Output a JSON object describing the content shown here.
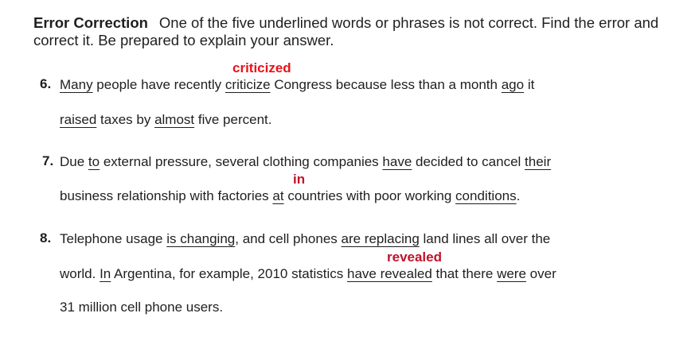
{
  "instructions": {
    "title": "Error Correction",
    "text": "One of the five underlined words or phrases is not correct. Find the error and correct it. Be prepared to explain your answer."
  },
  "items": [
    {
      "number": "6.",
      "correction": "criticized",
      "line1": [
        {
          "t": "Many",
          "u": true
        },
        {
          "t": " people have recently ",
          "u": false
        },
        {
          "t": "criticize",
          "u": true
        },
        {
          "t": " Congress because less than a month ",
          "u": false
        },
        {
          "t": "ago",
          "u": true
        },
        {
          "t": " it",
          "u": false
        }
      ],
      "line2": [
        {
          "t": "raised",
          "u": true
        },
        {
          "t": " taxes by ",
          "u": false
        },
        {
          "t": "almost",
          "u": true
        },
        {
          "t": " five percent.",
          "u": false
        }
      ]
    },
    {
      "number": "7.",
      "correction": "in",
      "line1": [
        {
          "t": "Due ",
          "u": false
        },
        {
          "t": "to",
          "u": true
        },
        {
          "t": " external pressure, several clothing companies ",
          "u": false
        },
        {
          "t": "have",
          "u": true
        },
        {
          "t": " decided to cancel ",
          "u": false
        },
        {
          "t": "their",
          "u": true
        }
      ],
      "line2": [
        {
          "t": "business relationship with factories ",
          "u": false
        },
        {
          "t": "at",
          "u": true
        },
        {
          "t": " countries with poor working ",
          "u": false
        },
        {
          "t": "conditions",
          "u": true
        },
        {
          "t": ".",
          "u": false
        }
      ]
    },
    {
      "number": "8.",
      "correction": "revealed",
      "line1": [
        {
          "t": "Telephone usage ",
          "u": false
        },
        {
          "t": "is changing",
          "u": true
        },
        {
          "t": ", and cell phones ",
          "u": false
        },
        {
          "t": "are replacing",
          "u": true
        },
        {
          "t": " land lines all over the",
          "u": false
        }
      ],
      "line2": [
        {
          "t": "world. ",
          "u": false
        },
        {
          "t": "In",
          "u": true
        },
        {
          "t": " Argentina, for example, 2010 statistics ",
          "u": false
        },
        {
          "t": "have revealed",
          "u": true
        },
        {
          "t": " that there ",
          "u": false
        },
        {
          "t": "were",
          "u": true
        },
        {
          "t": " over",
          "u": false
        }
      ],
      "line3": [
        {
          "t": "31 million cell phone users.",
          "u": false
        }
      ]
    }
  ],
  "colors": {
    "correction": "#e8121b",
    "text": "#1f1f1f"
  }
}
